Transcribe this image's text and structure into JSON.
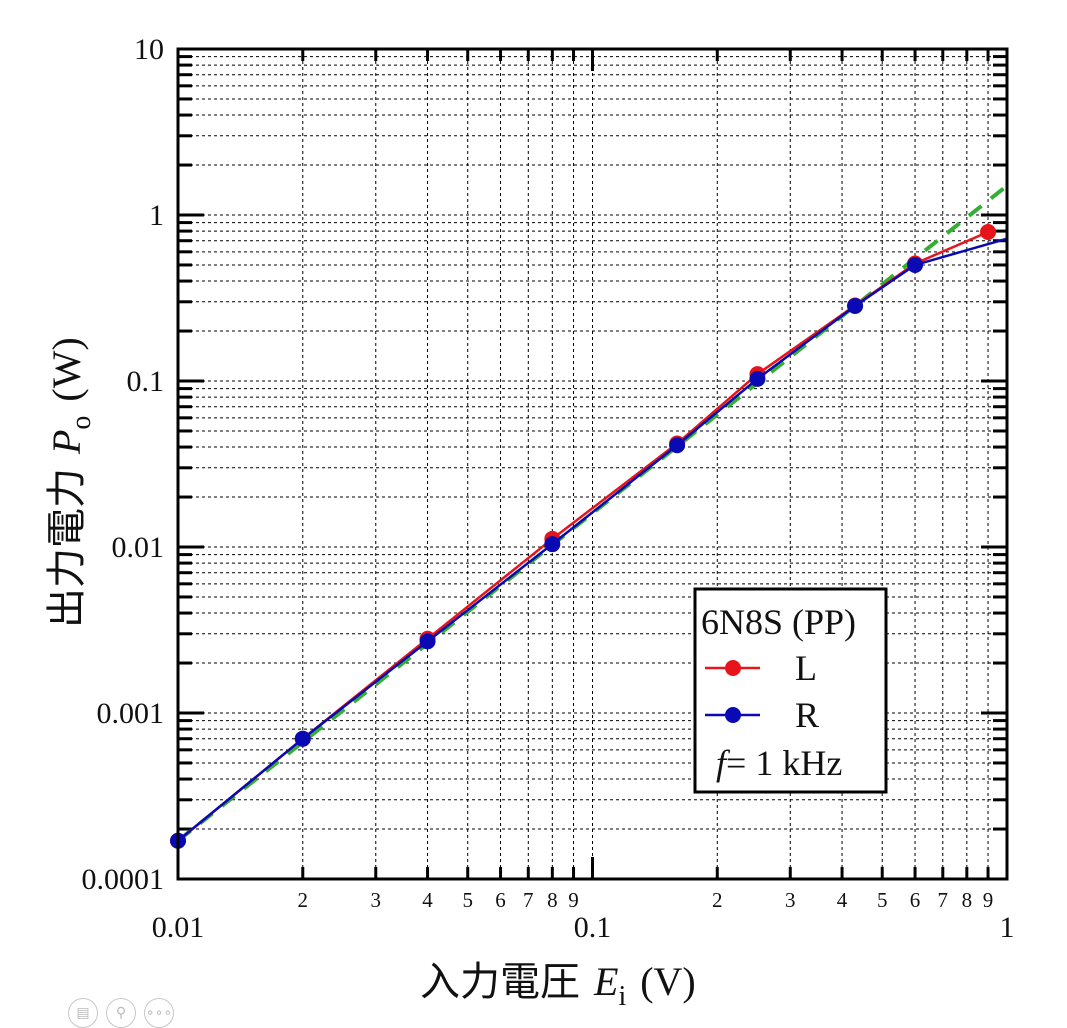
{
  "chart_data": {
    "type": "line",
    "x_scale": "log",
    "y_scale": "log",
    "xlim": [
      0.01,
      1
    ],
    "ylim": [
      0.0001,
      10
    ],
    "grid": true,
    "xlabel": {
      "main": "入力電圧",
      "symbol": "E",
      "subscript": "i",
      "unit": "(V)"
    },
    "ylabel": {
      "main": "出力電力",
      "symbol": "P",
      "subscript": "o",
      "unit": "(W)"
    },
    "x_major_ticks": [
      {
        "value": 0.01,
        "label": "0.01"
      },
      {
        "value": 0.1,
        "label": "0.1"
      },
      {
        "value": 1,
        "label": "1"
      }
    ],
    "x_minor_tick_labels": [
      "2",
      "3",
      "4",
      "5",
      "6",
      "7",
      "8",
      "9"
    ],
    "y_major_ticks": [
      {
        "value": 0.0001,
        "label": "0.0001"
      },
      {
        "value": 0.001,
        "label": "0.001"
      },
      {
        "value": 0.01,
        "label": "0.01"
      },
      {
        "value": 0.1,
        "label": "0.1"
      },
      {
        "value": 1,
        "label": "1"
      },
      {
        "value": 10,
        "label": "10"
      }
    ],
    "legend": {
      "title": "6N8S (PP)",
      "note_symbol": "f",
      "note": "= 1 kHz",
      "placement": "lower-right"
    },
    "series": [
      {
        "name": "L",
        "color": "#e8141c",
        "marker": "circle",
        "x": [
          0.01,
          0.02,
          0.04,
          0.08,
          0.16,
          0.25,
          0.43,
          0.6,
          0.9
        ],
        "y": [
          0.00017,
          0.0007,
          0.0028,
          0.0112,
          0.042,
          0.11,
          0.285,
          0.51,
          0.79
        ]
      },
      {
        "name": "R",
        "color": "#0a0ab4",
        "marker": "circle",
        "x": [
          0.01,
          0.02,
          0.04,
          0.08,
          0.16,
          0.25,
          0.43,
          0.6,
          1.0
        ],
        "y": [
          0.00017,
          0.0007,
          0.0027,
          0.0104,
          0.041,
          0.103,
          0.283,
          0.5,
          0.72
        ]
      },
      {
        "color": "#33b033",
        "style": "dashed",
        "marker": "none",
        "x": [
          0.01,
          1
        ],
        "y": [
          0.00017,
          1.5
        ]
      }
    ]
  },
  "viewer_icons": [
    "reader-icon",
    "zoom-icon",
    "more-icon"
  ]
}
